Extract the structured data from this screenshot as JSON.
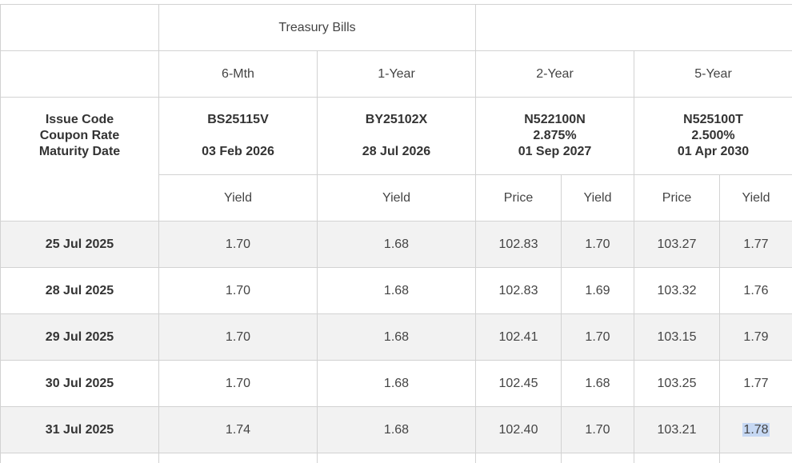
{
  "header": {
    "group_label": "Treasury Bills",
    "row_label_lines": [
      "Issue Code",
      "Coupon Rate",
      "Maturity Date"
    ],
    "tenors": [
      "6-Mth",
      "1-Year",
      "2-Year",
      "5-Year"
    ],
    "issues": [
      {
        "code": "BS25115V",
        "maturity": "03 Feb 2026"
      },
      {
        "code": "BY25102X",
        "maturity": "28 Jul 2026"
      },
      {
        "code": "N522100N",
        "coupon": "2.875%",
        "maturity": "01 Sep 2027"
      },
      {
        "code": "N525100T",
        "coupon": "2.500%",
        "maturity": "01 Apr 2030"
      }
    ],
    "sub_headers": [
      "Yield",
      "Yield",
      "Price",
      "Yield",
      "Price",
      "Yield"
    ]
  },
  "rows": [
    {
      "date": "25 Jul 2025",
      "values": [
        "1.70",
        "1.68",
        "102.83",
        "1.70",
        "103.27",
        "1.77"
      ]
    },
    {
      "date": "28 Jul 2025",
      "values": [
        "1.70",
        "1.68",
        "102.83",
        "1.69",
        "103.32",
        "1.76"
      ]
    },
    {
      "date": "29 Jul 2025",
      "values": [
        "1.70",
        "1.68",
        "102.41",
        "1.70",
        "103.15",
        "1.79"
      ]
    },
    {
      "date": "30 Jul 2025",
      "values": [
        "1.70",
        "1.68",
        "102.45",
        "1.68",
        "103.25",
        "1.77"
      ]
    },
    {
      "date": "31 Jul 2025",
      "values": [
        "1.74",
        "1.68",
        "102.40",
        "1.70",
        "103.21",
        "1.78"
      ]
    }
  ],
  "selection": {
    "highlight_color": "#c6d8f3"
  }
}
